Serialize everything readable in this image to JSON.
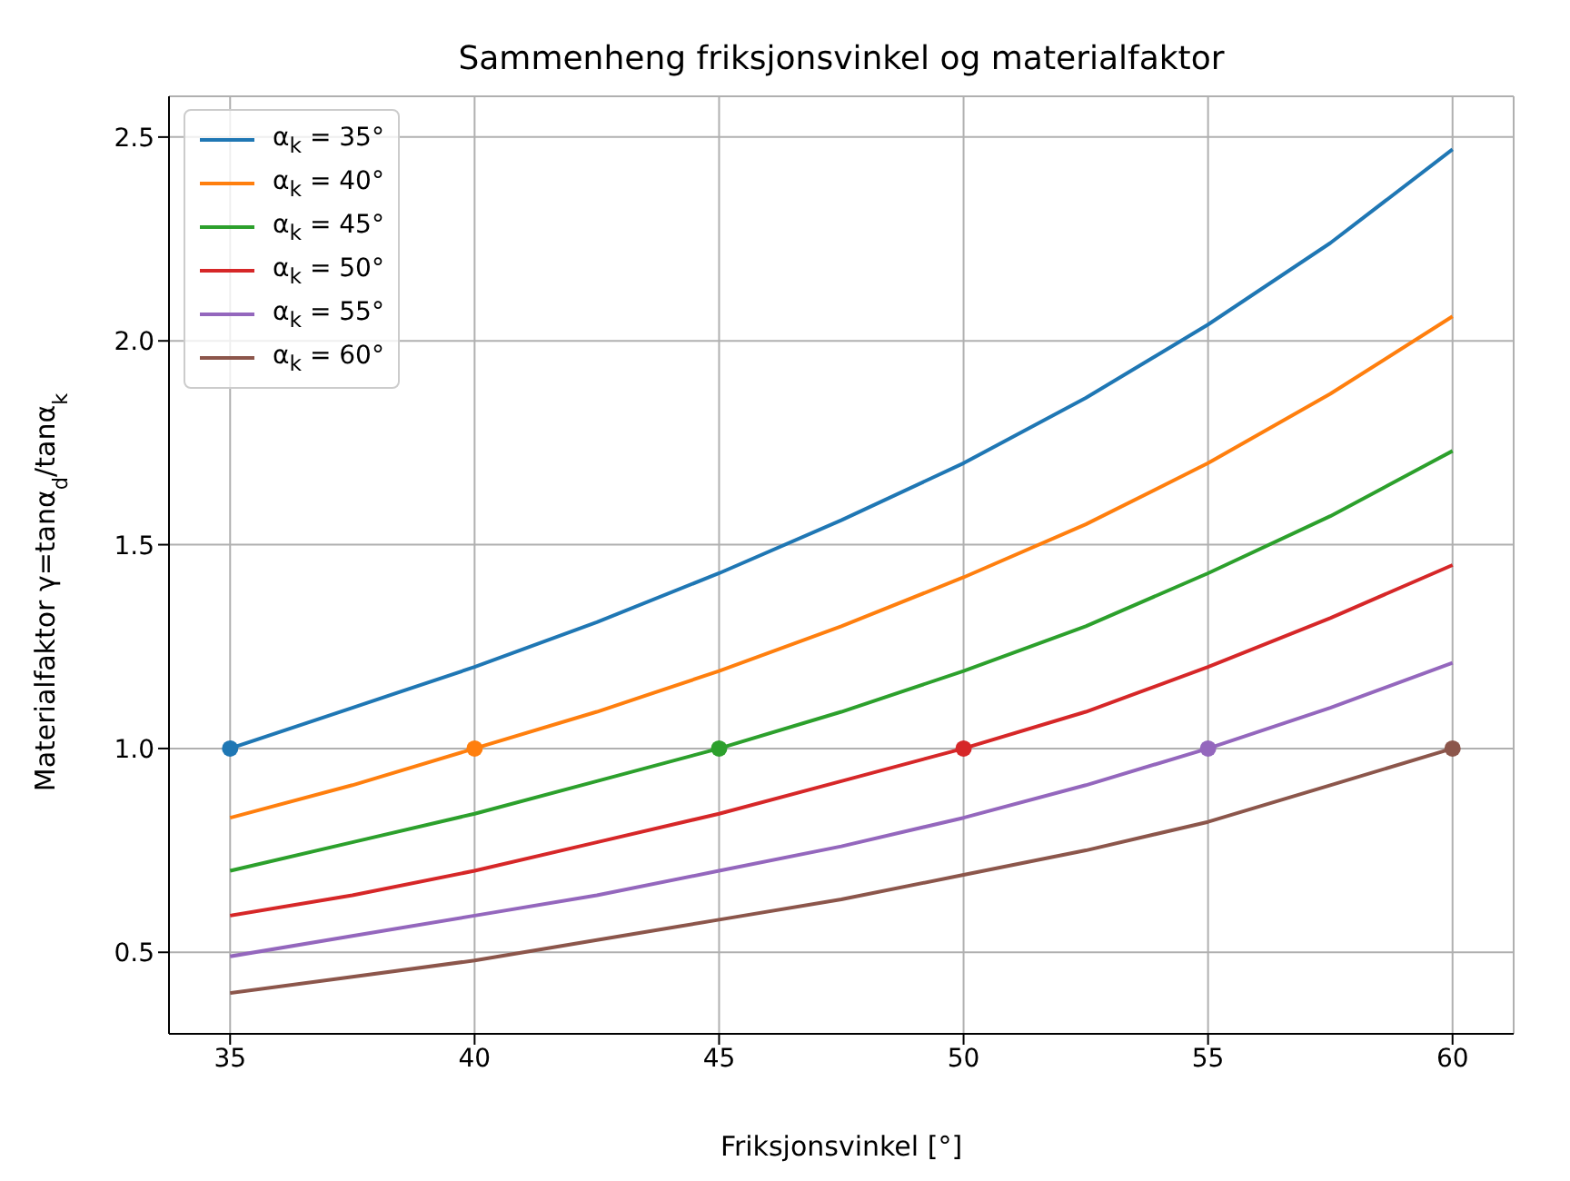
{
  "chart_data": {
    "type": "line",
    "title": "Sammenheng friksjonsvinkel og materialfaktor",
    "xlabel": "Friksjonsvinkel [°]",
    "ylabel": "Materialfaktor γ=tanα$_{d}$/tanα$_{k}$",
    "x": [
      35,
      37.5,
      40,
      42.5,
      45,
      47.5,
      50,
      52.5,
      55,
      57.5,
      60
    ],
    "series": [
      {
        "name": "α$_{k}$ = 35°",
        "color": "#1f77b4",
        "values": [
          1.0,
          1.1,
          1.2,
          1.31,
          1.43,
          1.56,
          1.7,
          1.86,
          2.04,
          2.24,
          2.47
        ]
      },
      {
        "name": "α$_{k}$ = 40°",
        "color": "#ff7f0e",
        "values": [
          0.83,
          0.91,
          1.0,
          1.09,
          1.19,
          1.3,
          1.42,
          1.55,
          1.7,
          1.87,
          2.06
        ]
      },
      {
        "name": "α$_{k}$ = 45°",
        "color": "#2ca02c",
        "values": [
          0.7,
          0.77,
          0.84,
          0.92,
          1.0,
          1.09,
          1.19,
          1.3,
          1.43,
          1.57,
          1.73
        ]
      },
      {
        "name": "α$_{k}$ = 50°",
        "color": "#d62728",
        "values": [
          0.59,
          0.64,
          0.7,
          0.77,
          0.84,
          0.92,
          1.0,
          1.09,
          1.2,
          1.32,
          1.45
        ]
      },
      {
        "name": "α$_{k}$ = 55°",
        "color": "#9467bd",
        "values": [
          0.49,
          0.54,
          0.59,
          0.64,
          0.7,
          0.76,
          0.83,
          0.91,
          1.0,
          1.1,
          1.21
        ]
      },
      {
        "name": "α$_{k}$ = 60°",
        "color": "#8c564b",
        "values": [
          0.4,
          0.44,
          0.48,
          0.53,
          0.58,
          0.63,
          0.69,
          0.75,
          0.82,
          0.91,
          1.0
        ]
      },
      {
        "type": "scatter",
        "marker": "circle",
        "color": "#1f77b4",
        "x": [
          35
        ],
        "values": [
          1.0
        ]
      },
      {
        "type": "scatter",
        "marker": "circle",
        "color": "#ff7f0e",
        "x": [
          40
        ],
        "values": [
          1.0
        ]
      },
      {
        "type": "scatter",
        "marker": "circle",
        "color": "#2ca02c",
        "x": [
          45
        ],
        "values": [
          1.0
        ]
      },
      {
        "type": "scatter",
        "marker": "circle",
        "color": "#d62728",
        "x": [
          50
        ],
        "values": [
          1.0
        ]
      },
      {
        "type": "scatter",
        "marker": "circle",
        "color": "#9467bd",
        "x": [
          55
        ],
        "values": [
          1.0
        ]
      },
      {
        "type": "scatter",
        "marker": "circle",
        "color": "#8c564b",
        "x": [
          60
        ],
        "values": [
          1.0
        ]
      }
    ],
    "xlim": [
      33.75,
      61.25
    ],
    "xticks": [
      35,
      40,
      45,
      50,
      55,
      60
    ],
    "ylim": [
      0.3,
      2.6
    ],
    "yticks": [
      {
        "value": 0.5,
        "label": "0.5"
      },
      {
        "value": 1.0,
        "label": "1.0"
      },
      {
        "value": 1.5,
        "label": "1.5"
      },
      {
        "value": 2.0,
        "label": "2.0"
      },
      {
        "value": 2.5,
        "label": "2.5"
      }
    ],
    "grid": true,
    "legend": "top left",
    "marker": "none",
    "line_style": "solid"
  }
}
